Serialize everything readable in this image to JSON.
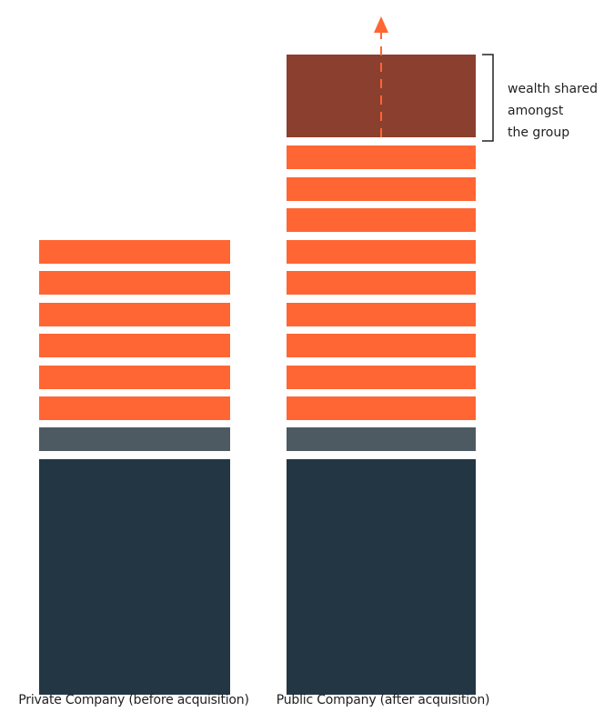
{
  "columns": [
    {
      "label": "Private Company (before acquisition)",
      "orange_layers": 6,
      "has_shared_wealth_block": false
    },
    {
      "label": "Public Company (after acquisition)",
      "orange_layers": 9,
      "has_shared_wealth_block": true
    }
  ],
  "annotation": {
    "lines": [
      "wealth shared",
      "amongst",
      "the group"
    ]
  },
  "colors": {
    "base": "#233644",
    "gray_layer": "#4e5a61",
    "orange_layer": "#ff6633",
    "shared_wealth": "#8b3f2e",
    "arrow": "#ff6633",
    "bracket": "#222222"
  }
}
